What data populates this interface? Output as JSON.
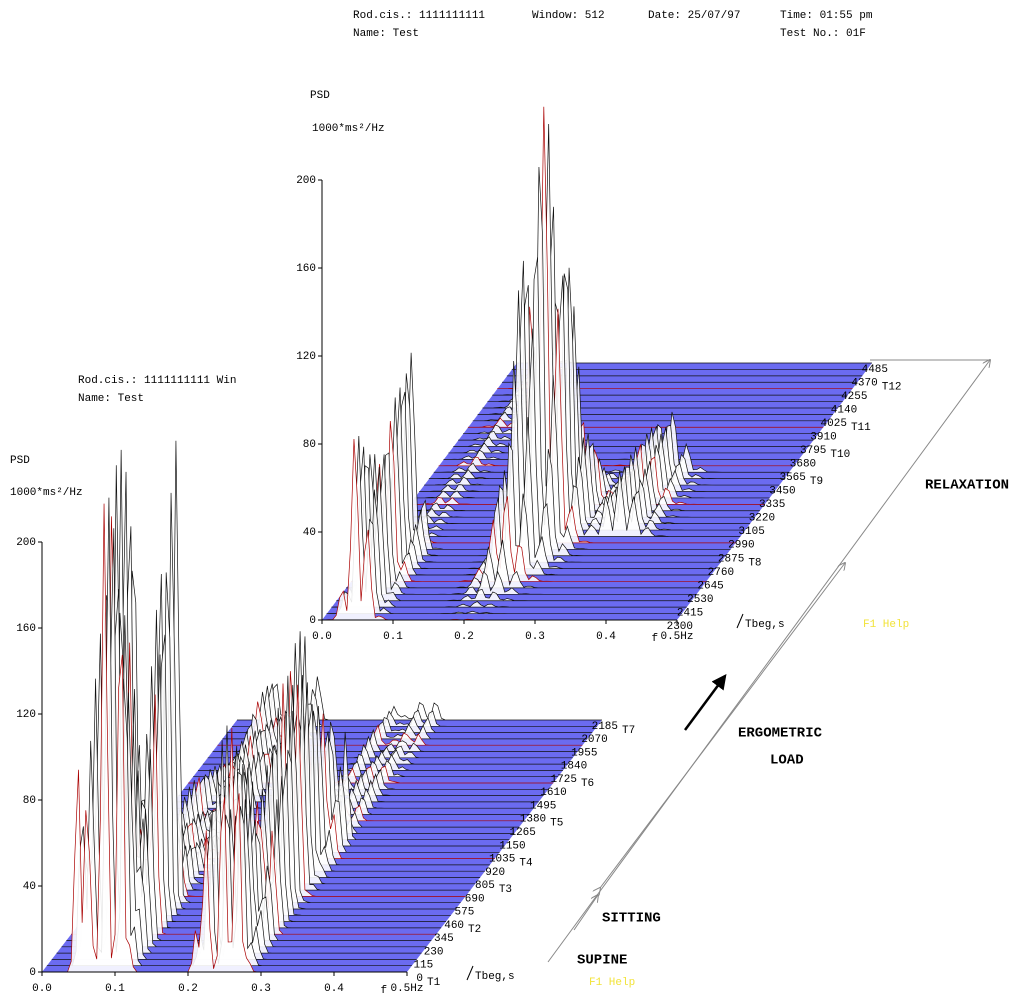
{
  "header": {
    "rod": "Rod.cis.: 1111111111",
    "window": "Window: 512",
    "date": "Date: 25/07/97",
    "time": "Time: 01:55 pm",
    "name": "Name: Test",
    "test_no": "Test No.: 01F"
  },
  "chart_data": [
    {
      "type": "waterfall",
      "y_label": "PSD",
      "y_unit": "1000*ms²/Hz",
      "ylim": [
        0,
        200
      ],
      "yticks": [
        0,
        40,
        80,
        120,
        160,
        200
      ],
      "xlim": [
        0,
        0.5
      ],
      "x_label": "f",
      "xticks": [
        {
          "value": 0,
          "label": "0.0"
        },
        {
          "value": 0.1,
          "label": "0.1"
        },
        {
          "value": 0.2,
          "label": "0.2"
        },
        {
          "value": 0.3,
          "label": "0.3"
        },
        {
          "value": 0.4,
          "label": "0.4"
        },
        {
          "value": 0.5,
          "label": "0.5Hz"
        }
      ],
      "t_label": "Tbeg,s",
      "tlim": [
        2300,
        4485
      ],
      "tticks": [
        2300,
        2415,
        2530,
        2645,
        2760,
        2875,
        2990,
        3105,
        3220,
        3335,
        3450,
        3565,
        3680,
        3795,
        3910,
        4025,
        4140,
        4255,
        4370,
        4485
      ],
      "stages": [
        {
          "label": "T8",
          "value": 2875
        },
        {
          "label": "T9",
          "value": 3565
        },
        {
          "label": "T10",
          "value": 3795
        },
        {
          "label": "T11",
          "value": 4025
        },
        {
          "label": "T12",
          "value": 4370
        }
      ],
      "help": "F1 Help"
    },
    {
      "type": "waterfall",
      "y_label": "PSD",
      "y_unit": "1000*ms²/Hz",
      "overlap_rod": "Rod.cis.: 1111111111  Win",
      "overlap_name": "Name: Test",
      "ylim": [
        0,
        200
      ],
      "yticks": [
        0,
        40,
        80,
        120,
        160,
        200
      ],
      "xlim": [
        0,
        0.5
      ],
      "x_label": "f",
      "xticks": [
        {
          "value": 0,
          "label": "0.0"
        },
        {
          "value": 0.1,
          "label": "0.1"
        },
        {
          "value": 0.2,
          "label": "0.2"
        },
        {
          "value": 0.3,
          "label": "0.3"
        },
        {
          "value": 0.4,
          "label": "0.4"
        },
        {
          "value": 0.5,
          "label": "0.5Hz"
        }
      ],
      "t_label": "Tbeg,s",
      "tlim": [
        0,
        2185
      ],
      "tticks": [
        0,
        115,
        230,
        345,
        460,
        575,
        690,
        805,
        920,
        1035,
        1150,
        1265,
        1380,
        1495,
        1610,
        1725,
        1840,
        1955,
        2070,
        2185
      ],
      "stages": [
        {
          "label": "T1",
          "value": 0
        },
        {
          "label": "T2",
          "value": 460
        },
        {
          "label": "T3",
          "value": 805
        },
        {
          "label": "T4",
          "value": 1035
        },
        {
          "label": "T5",
          "value": 1380
        },
        {
          "label": "T6",
          "value": 1725
        },
        {
          "label": "T7",
          "value": 2185
        }
      ],
      "help": "F1 Help"
    }
  ],
  "annotations": {
    "relaxation": "RELAXATION",
    "ergometric": "ERGOMETRIC",
    "load": "LOAD",
    "sitting": "SITTING",
    "supine": "SUPINE"
  }
}
